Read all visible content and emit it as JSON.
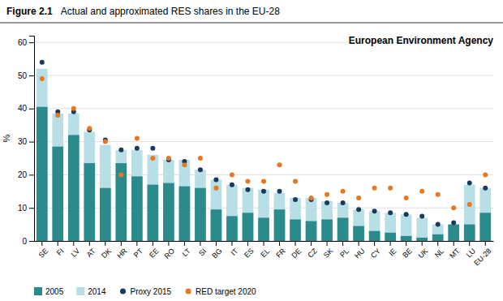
{
  "chart_data": {
    "type": "bar",
    "title": "Figure 2.1",
    "subtitle": "Actual and approximated RES shares in the EU-28",
    "y_label": "%",
    "annotations": [
      "European Environment Agency"
    ],
    "categories": [
      "SE",
      "FI",
      "LV",
      "AT",
      "DK",
      "HR",
      "PT",
      "EE",
      "RO",
      "LT",
      "SI",
      "BG",
      "IT",
      "ES",
      "EL",
      "FR",
      "DE",
      "CZ",
      "SK",
      "PL",
      "HU",
      "CY",
      "IE",
      "BE",
      "UK",
      "NL",
      "MT",
      "LU",
      "EU-28"
    ],
    "series": [
      {
        "name": "2005",
        "type": "bar",
        "color": "#2a8a8c",
        "values": [
          40.5,
          28.5,
          32.0,
          23.5,
          16.0,
          23.5,
          19.5,
          17.0,
          17.5,
          16.5,
          16.0,
          9.5,
          7.5,
          8.5,
          7.0,
          9.5,
          6.5,
          6.0,
          6.5,
          7.0,
          4.5,
          3.0,
          2.5,
          1.5,
          1.0,
          2.0,
          5.0,
          5.0,
          8.5
        ]
      },
      {
        "name": "2014",
        "type": "bar",
        "color": "#b8dfe6",
        "values": [
          52.0,
          38.5,
          38.5,
          33.0,
          29.0,
          27.5,
          27.5,
          26.0,
          24.5,
          24.5,
          21.5,
          18.5,
          17.0,
          16.0,
          15.5,
          14.5,
          13.0,
          13.0,
          12.0,
          11.5,
          9.5,
          9.0,
          8.5,
          8.0,
          7.0,
          5.0,
          5.0,
          17.0,
          16.0
        ]
      },
      {
        "name": "Proxy 2015",
        "type": "scatter",
        "color": "#1a3a5c",
        "values": [
          54.0,
          39.0,
          39.0,
          33.5,
          30.5,
          27.5,
          28.0,
          28.0,
          24.5,
          24.0,
          21.5,
          18.5,
          17.0,
          15.5,
          15.0,
          15.0,
          12.5,
          12.5,
          11.5,
          11.5,
          9.5,
          9.0,
          8.5,
          8.0,
          7.5,
          5.0,
          5.5,
          17.5,
          16.0
        ]
      },
      {
        "name": "RED target 2020",
        "type": "scatter",
        "color": "#e87722",
        "values": [
          49.0,
          38.0,
          40.0,
          34.0,
          30.0,
          20.0,
          31.0,
          25.0,
          25.0,
          23.0,
          25.0,
          16.0,
          20.0,
          18.0,
          18.0,
          23.0,
          18.0,
          13.0,
          14.0,
          15.0,
          13.0,
          16.0,
          16.0,
          13.0,
          15.0,
          14.0,
          10.0,
          11.0,
          20.0
        ]
      }
    ],
    "stacked": false,
    "ylim": [
      0,
      62
    ],
    "yticks": [
      0,
      10,
      20,
      30,
      40,
      50,
      60
    ],
    "grid": true,
    "legend": "bottom"
  }
}
